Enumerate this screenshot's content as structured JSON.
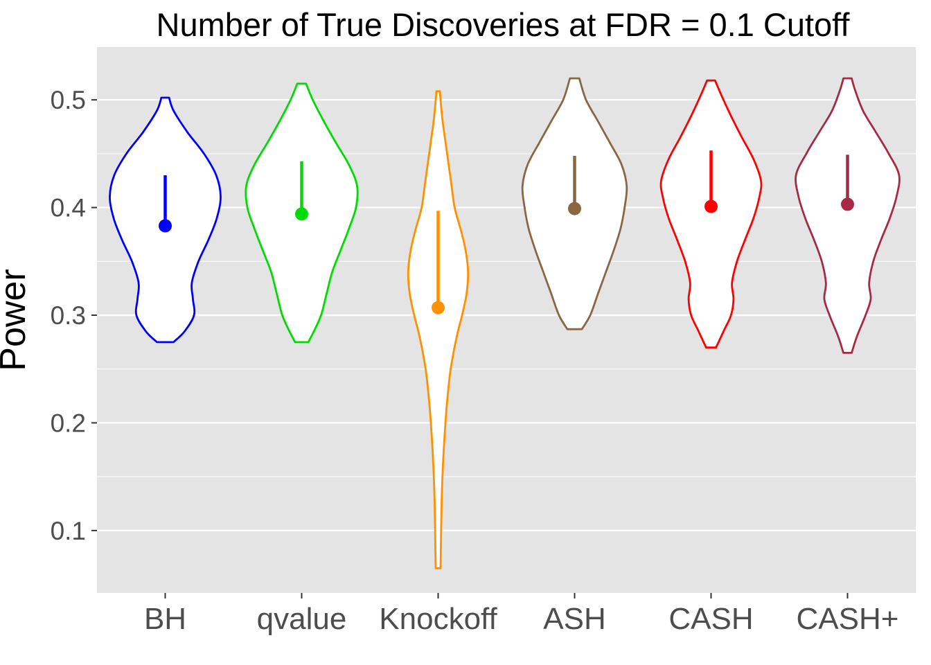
{
  "colors": {
    "panel_bg": "#E4E4E4",
    "grid": "#FFFFFF",
    "axis_text": "#4D4D4D",
    "title_text": "#000000",
    "violin_fill": "#FFFFFF",
    "tick_mark": "#333333"
  },
  "chart_data": {
    "type": "violin",
    "title": "Number of True Discoveries at FDR = 0.1 Cutoff",
    "xlabel": "",
    "ylabel": "Power",
    "ylim": [
      0.042,
      0.549
    ],
    "yticks": [
      0.1,
      0.2,
      0.3,
      0.4,
      0.5
    ],
    "yticks_minor": [
      0.15,
      0.25,
      0.35,
      0.45
    ],
    "grid": true,
    "legend": "none",
    "categories": [
      "BH",
      "qvalue",
      "Knockoff",
      "ASH",
      "CASH",
      "CASH+"
    ],
    "series": [
      {
        "name": "BH",
        "color": "#0000FF",
        "mean": 0.383,
        "whisker_top": 0.43,
        "range": [
          0.275,
          0.502
        ],
        "relwidth": 1.0,
        "profile": [
          [
            0.275,
            0.15
          ],
          [
            0.285,
            0.35
          ],
          [
            0.3,
            0.52
          ],
          [
            0.315,
            0.5
          ],
          [
            0.33,
            0.48
          ],
          [
            0.35,
            0.6
          ],
          [
            0.37,
            0.78
          ],
          [
            0.39,
            0.93
          ],
          [
            0.41,
            1.0
          ],
          [
            0.43,
            0.92
          ],
          [
            0.45,
            0.7
          ],
          [
            0.47,
            0.4
          ],
          [
            0.49,
            0.15
          ],
          [
            0.502,
            0.07
          ]
        ]
      },
      {
        "name": "qvalue",
        "color": "#00DC00",
        "mean": 0.394,
        "whisker_top": 0.443,
        "range": [
          0.275,
          0.515
        ],
        "relwidth": 1.0,
        "profile": [
          [
            0.275,
            0.12
          ],
          [
            0.285,
            0.22
          ],
          [
            0.3,
            0.35
          ],
          [
            0.32,
            0.45
          ],
          [
            0.34,
            0.55
          ],
          [
            0.36,
            0.7
          ],
          [
            0.38,
            0.85
          ],
          [
            0.4,
            0.98
          ],
          [
            0.42,
            1.0
          ],
          [
            0.44,
            0.85
          ],
          [
            0.46,
            0.62
          ],
          [
            0.48,
            0.4
          ],
          [
            0.5,
            0.2
          ],
          [
            0.515,
            0.08
          ]
        ]
      },
      {
        "name": "Knockoff",
        "color": "#FF9100",
        "mean": 0.307,
        "whisker_top": 0.397,
        "range": [
          0.065,
          0.508
        ],
        "relwidth": 0.54,
        "profile": [
          [
            0.065,
            0.08
          ],
          [
            0.08,
            0.09
          ],
          [
            0.1,
            0.1
          ],
          [
            0.13,
            0.12
          ],
          [
            0.16,
            0.16
          ],
          [
            0.19,
            0.22
          ],
          [
            0.22,
            0.3
          ],
          [
            0.25,
            0.42
          ],
          [
            0.28,
            0.62
          ],
          [
            0.3,
            0.8
          ],
          [
            0.32,
            0.95
          ],
          [
            0.34,
            1.0
          ],
          [
            0.36,
            0.92
          ],
          [
            0.38,
            0.75
          ],
          [
            0.4,
            0.55
          ],
          [
            0.42,
            0.45
          ],
          [
            0.44,
            0.35
          ],
          [
            0.46,
            0.25
          ],
          [
            0.48,
            0.15
          ],
          [
            0.5,
            0.08
          ],
          [
            0.508,
            0.06
          ]
        ]
      },
      {
        "name": "ASH",
        "color": "#8A6642",
        "mean": 0.399,
        "whisker_top": 0.448,
        "range": [
          0.287,
          0.52
        ],
        "relwidth": 0.94,
        "profile": [
          [
            0.287,
            0.14
          ],
          [
            0.3,
            0.3
          ],
          [
            0.32,
            0.45
          ],
          [
            0.34,
            0.6
          ],
          [
            0.36,
            0.75
          ],
          [
            0.38,
            0.88
          ],
          [
            0.4,
            0.96
          ],
          [
            0.42,
            1.0
          ],
          [
            0.44,
            0.9
          ],
          [
            0.46,
            0.68
          ],
          [
            0.48,
            0.45
          ],
          [
            0.5,
            0.22
          ],
          [
            0.52,
            0.09
          ]
        ]
      },
      {
        "name": "CASH",
        "color": "#FF0000",
        "mean": 0.401,
        "whisker_top": 0.453,
        "range": [
          0.27,
          0.518
        ],
        "relwidth": 0.9,
        "profile": [
          [
            0.27,
            0.1
          ],
          [
            0.285,
            0.25
          ],
          [
            0.3,
            0.4
          ],
          [
            0.315,
            0.45
          ],
          [
            0.33,
            0.42
          ],
          [
            0.35,
            0.52
          ],
          [
            0.37,
            0.68
          ],
          [
            0.39,
            0.85
          ],
          [
            0.41,
            0.97
          ],
          [
            0.425,
            1.0
          ],
          [
            0.445,
            0.85
          ],
          [
            0.465,
            0.62
          ],
          [
            0.485,
            0.4
          ],
          [
            0.505,
            0.2
          ],
          [
            0.518,
            0.08
          ]
        ]
      },
      {
        "name": "CASH+",
        "color": "#A62A44",
        "mean": 0.403,
        "whisker_top": 0.449,
        "range": [
          0.265,
          0.52
        ],
        "relwidth": 0.93,
        "profile": [
          [
            0.265,
            0.08
          ],
          [
            0.28,
            0.18
          ],
          [
            0.3,
            0.35
          ],
          [
            0.315,
            0.45
          ],
          [
            0.33,
            0.42
          ],
          [
            0.35,
            0.5
          ],
          [
            0.37,
            0.65
          ],
          [
            0.39,
            0.82
          ],
          [
            0.41,
            0.95
          ],
          [
            0.43,
            1.0
          ],
          [
            0.45,
            0.8
          ],
          [
            0.47,
            0.55
          ],
          [
            0.49,
            0.3
          ],
          [
            0.51,
            0.14
          ],
          [
            0.52,
            0.08
          ]
        ]
      }
    ]
  }
}
